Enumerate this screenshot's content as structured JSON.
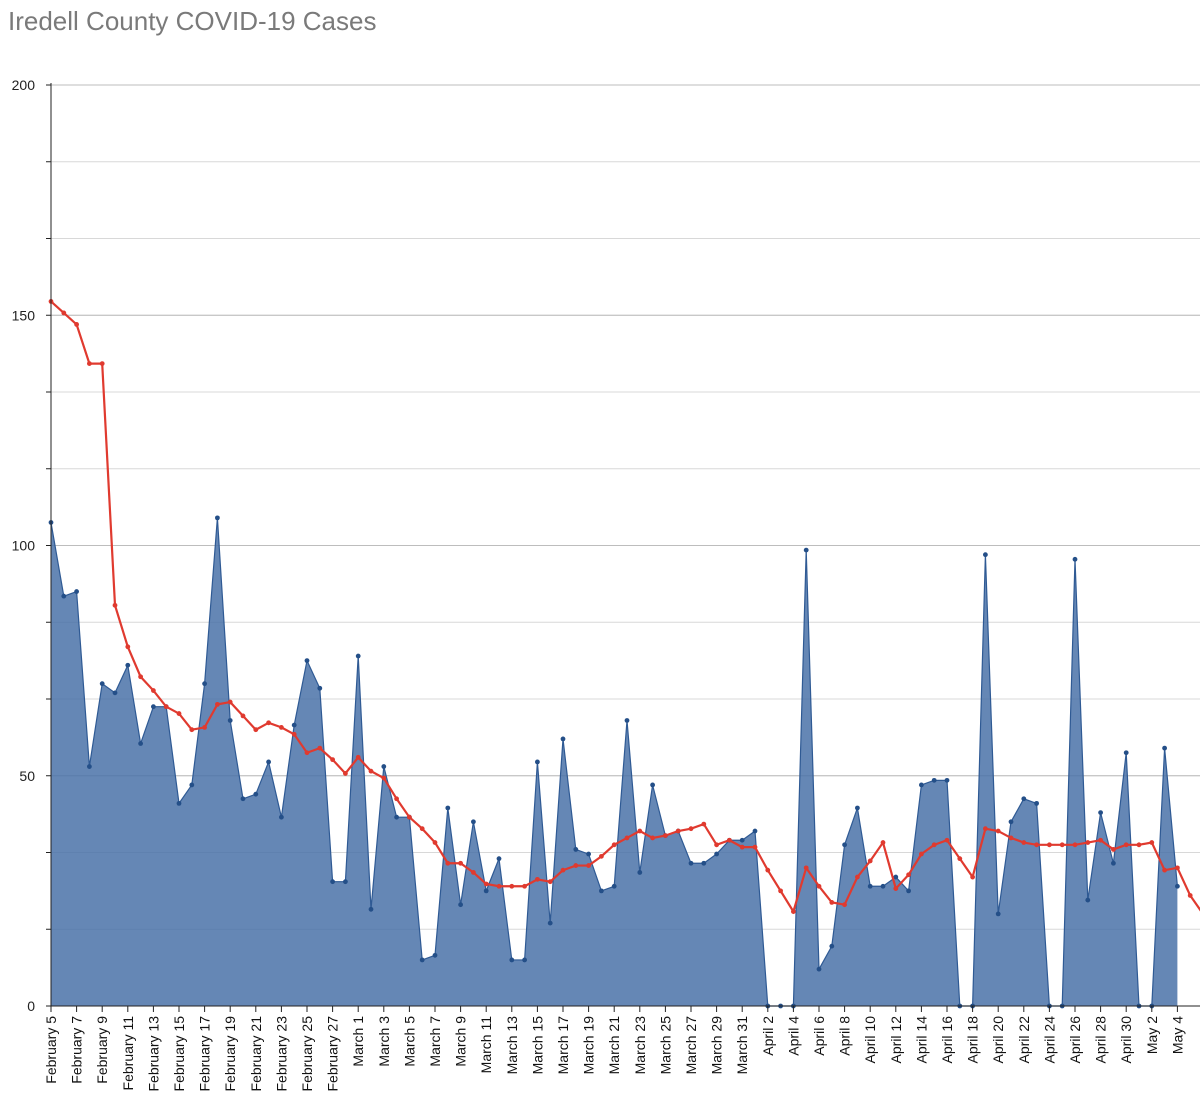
{
  "chart_data": {
    "type": "area",
    "title": "Iredell County COVID-19 Cases",
    "xlabel": "",
    "ylabel": "",
    "ylim": [
      0,
      200
    ],
    "y_ticks": [
      0,
      50,
      100,
      150,
      200
    ],
    "grid": true,
    "x": [
      "February 5",
      "February 6",
      "February 7",
      "February 8",
      "February 9",
      "February 10",
      "February 11",
      "February 12",
      "February 13",
      "February 14",
      "February 15",
      "February 16",
      "February 17",
      "February 18",
      "February 19",
      "February 20",
      "February 21",
      "February 22",
      "February 23",
      "February 24",
      "February 25",
      "February 26",
      "February 27",
      "February 28",
      "March 1",
      "March 2",
      "March 3",
      "March 4",
      "March 5",
      "March 6",
      "March 7",
      "March 8",
      "March 9",
      "March 10",
      "March 11",
      "March 12",
      "March 13",
      "March 14",
      "March 15",
      "March 16",
      "March 17",
      "March 18",
      "March 19",
      "March 20",
      "March 21",
      "March 22",
      "March 23",
      "March 24",
      "March 25",
      "March 26",
      "March 27",
      "March 28",
      "March 29",
      "March 30",
      "March 31",
      "April 1",
      "April 2",
      "April 3",
      "April 4",
      "April 5",
      "April 6",
      "April 7",
      "April 8",
      "April 9",
      "April 10",
      "April 11",
      "April 12",
      "April 13",
      "April 14",
      "April 15",
      "April 16",
      "April 17",
      "April 18",
      "April 19",
      "April 20",
      "April 21",
      "April 22",
      "April 23",
      "April 24",
      "April 25",
      "April 26",
      "April 27",
      "April 28",
      "April 29",
      "April 30",
      "May 1",
      "May 2",
      "May 3",
      "May 4",
      "May 5",
      "May 6"
    ],
    "x_tick_labels": [
      "February 5",
      "February 7",
      "February 9",
      "February 11",
      "February 13",
      "February 15",
      "February 17",
      "February 19",
      "February 21",
      "February 23",
      "February 25",
      "February 27",
      "March 1",
      "March 3",
      "March 5",
      "March 7",
      "March 9",
      "March 11",
      "March 13",
      "March 15",
      "March 17",
      "March 19",
      "March 21",
      "March 23",
      "March 25",
      "March 27",
      "March 29",
      "March 31",
      "April 2",
      "April 4",
      "April 6",
      "April 8",
      "April 10",
      "April 12",
      "April 14",
      "April 16",
      "April 18",
      "April 20",
      "April 22",
      "April 24",
      "April 26",
      "April 28",
      "April 30",
      "May 2",
      "May 4"
    ],
    "series": [
      {
        "kind": "area",
        "color": "#4a72a8",
        "values": [
          105,
          89,
          90,
          52,
          70,
          68,
          74,
          57,
          65,
          65,
          44,
          48,
          70,
          106,
          62,
          45,
          46,
          53,
          41,
          61,
          75,
          69,
          27,
          27,
          76,
          21,
          52,
          41,
          41,
          10,
          11,
          43,
          22,
          40,
          25,
          32,
          10,
          10,
          53,
          18,
          58,
          34,
          33,
          25,
          26,
          62,
          29,
          48,
          37,
          38,
          31,
          31,
          33,
          36,
          36,
          38,
          0,
          0,
          0,
          99,
          8,
          13,
          35,
          43,
          26,
          26,
          28,
          25,
          48,
          49,
          49,
          0,
          0,
          98,
          20,
          40,
          45,
          44,
          0,
          0,
          97,
          23,
          42,
          31,
          55,
          0,
          0,
          56,
          26,
          null,
          null
        ]
      },
      {
        "kind": "line",
        "color": "#e03a2f",
        "values": [
          153,
          150.5,
          148,
          139.5,
          139.5,
          87,
          78,
          71.5,
          68.5,
          65,
          63.5,
          60,
          60.5,
          65.5,
          66,
          63,
          60,
          61.5,
          60.5,
          59,
          55,
          56,
          53.5,
          50.5,
          54,
          51,
          49.5,
          45,
          41,
          38.5,
          35.5,
          31,
          31,
          29,
          26.5,
          26,
          26,
          26,
          27.5,
          27,
          29.5,
          30.5,
          30.5,
          32.5,
          35,
          36.5,
          38,
          36.5,
          37,
          38,
          38.5,
          39.5,
          35,
          36,
          34.5,
          34.5,
          29.5,
          25,
          20.5,
          30,
          26,
          22.5,
          22,
          28,
          31.5,
          35.5,
          25.5,
          28.5,
          33,
          35,
          36,
          32,
          28,
          38.5,
          38,
          36.5,
          35.5,
          35,
          35,
          35,
          35,
          35.5,
          36,
          34,
          35,
          35,
          35.5,
          29.5,
          30,
          24,
          20
        ]
      }
    ]
  }
}
